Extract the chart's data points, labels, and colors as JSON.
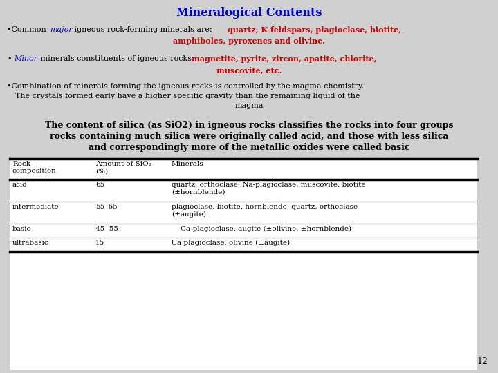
{
  "title": "Mineralogical Contents",
  "title_color": "#0000CC",
  "bg_color": "#D0D0D0",
  "fs_title": 11.5,
  "fs_body": 8.0,
  "fs_silica": 9.0,
  "fs_table": 7.5,
  "page_num": "12",
  "table_headers": [
    "Rock\ncomposition",
    "Amount of SiO₂\n(%)",
    "Minerals"
  ],
  "table_rows": [
    [
      "acid",
      "65",
      "quartz, orthoclase, Na-plagioclase, muscovite, biotite\n(±hornblende)"
    ],
    [
      "intermediate",
      "55–65",
      "plagioclase, biotite, hornblende, quartz, orthoclase\n(±augite)"
    ],
    [
      "basic",
      "45  55",
      "    Ca-plagioclase, augite (±olivine, ±hornblende)"
    ],
    [
      "ultrabasic",
      "15",
      "Ca plagioclase, olivine (±augite)"
    ]
  ]
}
